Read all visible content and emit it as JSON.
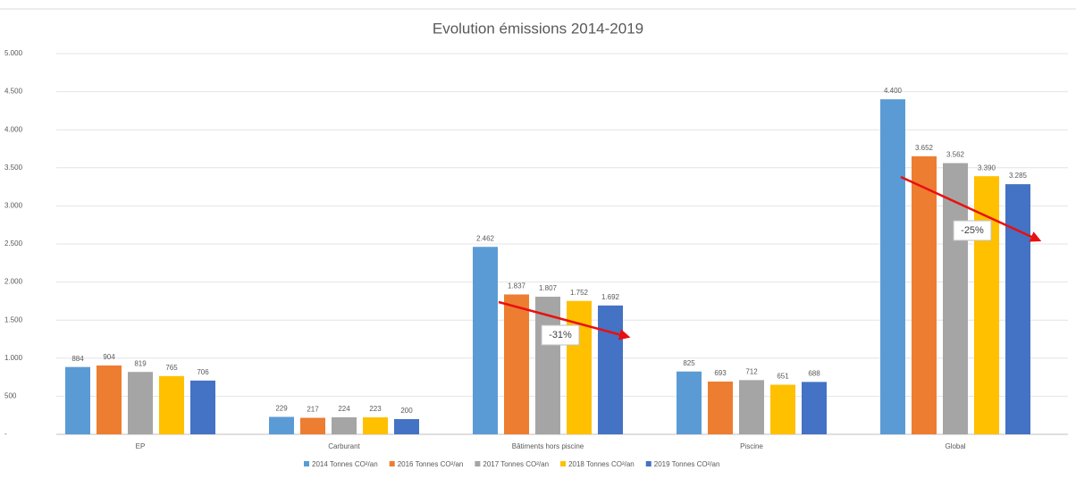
{
  "chart_data": {
    "type": "bar",
    "title": "Evolution émissions 2014-2019",
    "categories": [
      "EP",
      "Carburant",
      "Bâtiments hors piscine",
      "Piscine",
      "Global"
    ],
    "series": [
      {
        "name": "2014 Tonnes CO²/an",
        "color": "#5b9bd5",
        "values": [
          884,
          229,
          2462,
          825,
          4400
        ],
        "value_labels": [
          "884",
          "229",
          "2.462",
          "825",
          "4.400"
        ]
      },
      {
        "name": "2016 Tonnes CO²/an",
        "color": "#ed7d31",
        "values": [
          904,
          217,
          1837,
          693,
          3652
        ],
        "value_labels": [
          "904",
          "217",
          "1.837",
          "693",
          "3.652"
        ]
      },
      {
        "name": "2017 Tonnes CO²/an",
        "color": "#a5a5a5",
        "values": [
          819,
          224,
          1807,
          712,
          3562
        ],
        "value_labels": [
          "819",
          "224",
          "1.807",
          "712",
          "3.562"
        ]
      },
      {
        "name": "2018 Tonnes CO²/an",
        "color": "#ffc000",
        "values": [
          765,
          223,
          1752,
          651,
          3390
        ],
        "value_labels": [
          "765",
          "223",
          "1.752",
          "651",
          "3.390"
        ]
      },
      {
        "name": "2019 Tonnes CO²/an",
        "color": "#4472c4",
        "values": [
          706,
          200,
          1692,
          688,
          3285
        ],
        "value_labels": [
          "706",
          "200",
          "1.692",
          "688",
          "3.285"
        ]
      }
    ],
    "ylim": [
      0,
      5000
    ],
    "yticks": [
      {
        "value": 0,
        "label": "-"
      },
      500,
      {
        "value": 1000,
        "label": "1.000"
      },
      {
        "value": 1500,
        "label": "1.500"
      },
      {
        "value": 2000,
        "label": "2.000"
      },
      {
        "value": 2500,
        "label": "2.500"
      },
      {
        "value": 3000,
        "label": "3.000"
      },
      {
        "value": 3500,
        "label": "3.500"
      },
      {
        "value": 4000,
        "label": "4.000"
      },
      {
        "value": 4500,
        "label": "4.500"
      },
      {
        "value": 5000,
        "label": "5.000"
      }
    ],
    "grid": true,
    "legend": "bottom",
    "annotations": [
      "-31%",
      "-25%"
    ]
  }
}
